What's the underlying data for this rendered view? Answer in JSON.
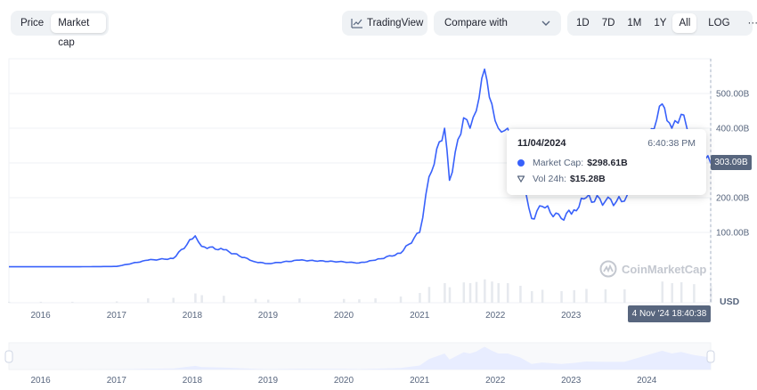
{
  "toolbar": {
    "tabs": [
      {
        "label": "Price"
      },
      {
        "label": "Market cap"
      }
    ],
    "tradingview_label": "TradingView",
    "compare_label": "Compare with",
    "ranges": [
      {
        "label": "1D"
      },
      {
        "label": "7D"
      },
      {
        "label": "1M"
      },
      {
        "label": "1Y"
      },
      {
        "label": "All"
      }
    ],
    "log_label": "LOG",
    "more_label": "···"
  },
  "tooltip": {
    "date": "11/04/2024",
    "time": "6:40:38 PM",
    "market_cap_label": "Market Cap:",
    "market_cap_value": "$298.61B",
    "volume_label": "Vol 24h:",
    "volume_value": "$15.28B"
  },
  "price_tag": "303.09B",
  "date_tag": "4 Nov '24 18:40:38",
  "currency": "USD",
  "watermark": "CoinMarketCap",
  "colors": {
    "line": "#3861fb",
    "grid": "#eff2f5",
    "navigator_fill": "#e8edff"
  },
  "chart_data": {
    "type": "line",
    "series": [
      {
        "x": [
          "2015-08-01",
          "2016-01-01",
          "2016-06-01",
          "2017-01-01",
          "2017-06-01",
          "2017-10-01",
          "2018-01-15",
          "2018-02-15",
          "2018-06-01",
          "2018-11-01",
          "2019-01-01",
          "2019-06-01",
          "2020-01-01",
          "2020-03-15",
          "2020-06-01",
          "2020-10-01",
          "2021-01-01",
          "2021-02-15",
          "2021-05-01",
          "2021-05-25",
          "2021-08-01",
          "2021-09-01",
          "2021-10-01",
          "2021-11-10",
          "2021-12-15",
          "2022-01-15",
          "2022-03-01",
          "2022-05-01",
          "2022-06-25",
          "2022-08-15",
          "2022-11-15",
          "2023-01-15",
          "2023-03-15",
          "2023-06-15",
          "2023-09-15",
          "2024-03-15",
          "2024-05-01",
          "2024-06-15",
          "2024-08-15",
          "2024-11-04"
        ],
        "values": [
          1,
          1,
          1,
          2,
          20,
          25,
          90,
          60,
          50,
          15,
          10,
          20,
          15,
          12,
          20,
          40,
          100,
          260,
          400,
          250,
          430,
          400,
          450,
          570,
          470,
          400,
          400,
          300,
          140,
          175,
          140,
          165,
          200,
          190,
          190,
          470,
          400,
          440,
          360,
          299
        ]
      }
    ],
    "x_ticks": [
      "2016",
      "2017",
      "2018",
      "2019",
      "2020",
      "2021",
      "2022",
      "2023"
    ],
    "y_ticks": [
      "100.00B",
      "200.00B",
      "300.00B",
      "400.00B",
      "500.00B"
    ],
    "y_tick_values": [
      100,
      200,
      300,
      400,
      500
    ],
    "navigator_ticks": [
      "2016",
      "2017",
      "2018",
      "2019",
      "2020",
      "2021",
      "2022",
      "2023",
      "2024"
    ],
    "ylim": [
      0,
      600
    ],
    "y_scale": "compressed-low",
    "grid": true
  }
}
